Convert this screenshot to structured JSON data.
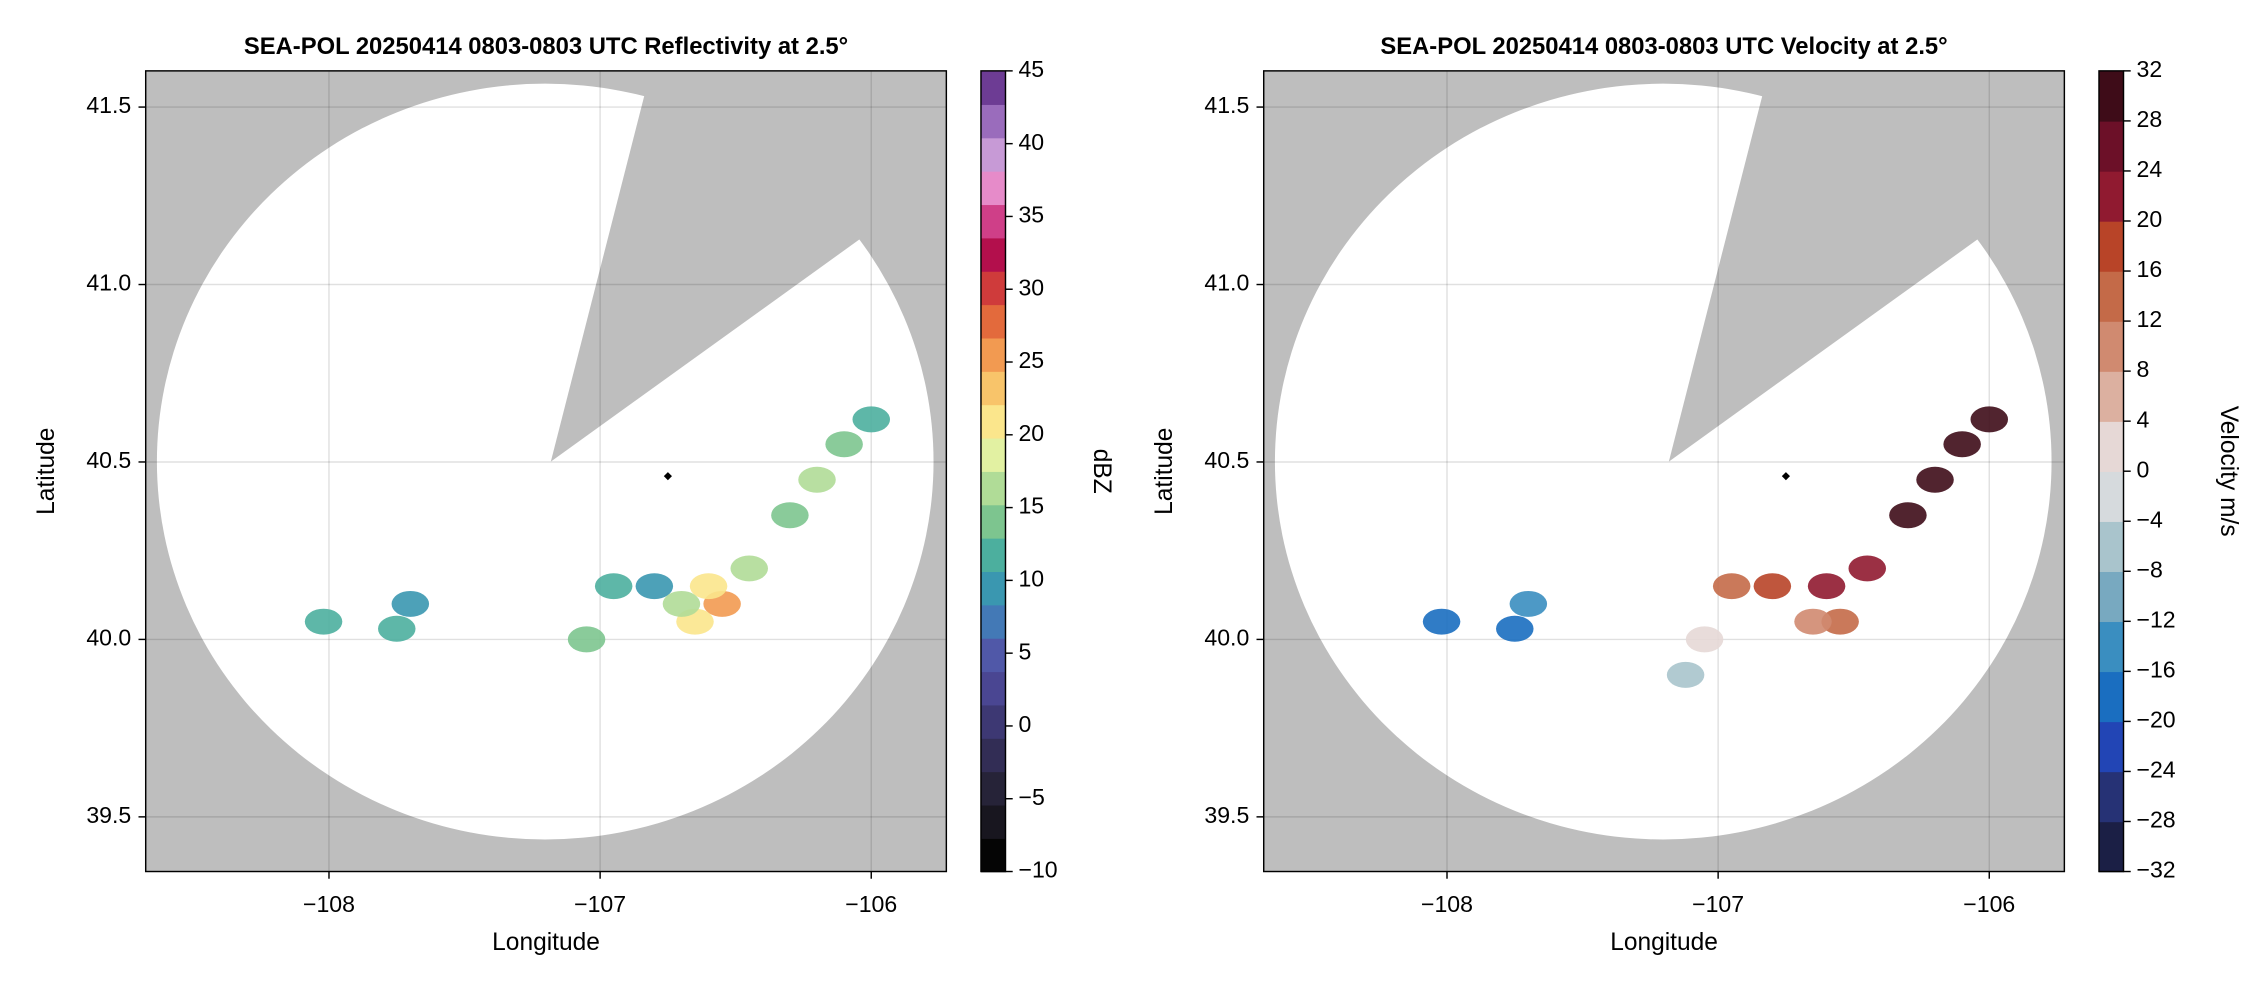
{
  "chart_data": [
    {
      "type": "radar",
      "title": "SEA-POL 20250414 0803-0803 UTC Reflectivity at 2.5°",
      "xlabel": "Longitude",
      "ylabel": "Latitude",
      "colorbar_label": "dBZ",
      "xlim": [
        -108.676,
        -105.723
      ],
      "ylim": [
        39.346,
        41.602
      ],
      "xticks": [
        {
          "value": -108,
          "label": "−108"
        },
        {
          "value": -107,
          "label": "−107"
        },
        {
          "value": -106,
          "label": "−106"
        }
      ],
      "yticks": [
        39.5,
        {
          "value": 40,
          "label": "40.0"
        },
        40.5,
        {
          "value": 41,
          "label": "41.0"
        },
        41.5
      ],
      "clim": [
        -10,
        45
      ],
      "cticks": [
        {
          "value": -10,
          "label": "−10"
        },
        {
          "value": -5,
          "label": "−5"
        },
        0,
        5,
        10,
        15,
        20,
        25,
        30,
        35,
        40,
        45
      ],
      "colors": [
        "#050505",
        "#18161f",
        "#262338",
        "#322d55",
        "#3d3873",
        "#4a4692",
        "#5058a8",
        "#4379b6",
        "#3a97b0",
        "#4caf9e",
        "#7dc58f",
        "#b0dc97",
        "#e2f1a2",
        "#fbe68c",
        "#f8c46a",
        "#f29a51",
        "#e36a3c",
        "#cf3b3b",
        "#b30f4c",
        "#cf3f88",
        "#e68bc9",
        "#c79ad6",
        "#9a6cbc",
        "#6d3c94"
      ],
      "grid": true,
      "x": [
        -106.55,
        -106.6,
        -106.45,
        -106.8,
        -106.95,
        -107.05,
        -106.3,
        -106.2,
        -106.1,
        -106.0,
        -107.75,
        -107.7,
        -108.02,
        -106.65,
        -106.7
      ],
      "y": [
        40.1,
        40.15,
        40.2,
        40.15,
        40.15,
        40.0,
        40.35,
        40.45,
        40.55,
        40.62,
        40.03,
        40.1,
        40.05,
        40.05,
        40.1
      ],
      "values": [
        25,
        20,
        16,
        10,
        12,
        14,
        15,
        16,
        14,
        12,
        12,
        10,
        12,
        22,
        17
      ],
      "marker_x": -106.75,
      "marker_y": 40.46
    },
    {
      "type": "radar",
      "title": "SEA-POL 20250414 0803-0803 UTC Velocity at 2.5°",
      "xlabel": "Longitude",
      "ylabel": "Latitude",
      "colorbar_label": "Velocity m/s",
      "xlim": [
        -108.676,
        -105.723
      ],
      "ylim": [
        39.346,
        41.602
      ],
      "xticks": [
        {
          "value": -108,
          "label": "−108"
        },
        {
          "value": -107,
          "label": "−107"
        },
        {
          "value": -106,
          "label": "−106"
        }
      ],
      "yticks": [
        39.5,
        {
          "value": 40,
          "label": "40.0"
        },
        40.5,
        {
          "value": 41,
          "label": "41.0"
        },
        41.5
      ],
      "clim": [
        -32,
        32
      ],
      "cticks": [
        {
          "value": -32,
          "label": "−32"
        },
        {
          "value": -28,
          "label": "−28"
        },
        {
          "value": -24,
          "label": "−24"
        },
        {
          "value": -20,
          "label": "−20"
        },
        {
          "value": -16,
          "label": "−16"
        },
        {
          "value": -12,
          "label": "−12"
        },
        {
          "value": -8,
          "label": "−8"
        },
        {
          "value": -4,
          "label": "−4"
        },
        0,
        4,
        8,
        12,
        16,
        20,
        24,
        28,
        32
      ],
      "colors": [
        "#1b1f45",
        "#263275",
        "#2245b5",
        "#1a6ec0",
        "#3a8ec0",
        "#78a9c0",
        "#a9c4cc",
        "#d6dadd",
        "#e6d8d6",
        "#dcb0a0",
        "#d08a70",
        "#c46a48",
        "#b84428",
        "#901a30",
        "#6c1028",
        "#3e0c18"
      ],
      "grid": true,
      "x": [
        -106.55,
        -106.6,
        -106.45,
        -106.8,
        -106.95,
        -107.05,
        -106.3,
        -106.2,
        -106.1,
        -106.0,
        -107.75,
        -107.7,
        -108.02,
        -106.65,
        -107.12
      ],
      "y": [
        40.05,
        40.15,
        40.2,
        40.15,
        40.15,
        40.0,
        40.35,
        40.45,
        40.55,
        40.62,
        40.03,
        40.1,
        40.05,
        40.05,
        39.9
      ],
      "values": [
        12,
        20,
        22,
        16,
        14,
        2,
        28,
        30,
        30,
        30,
        -18,
        -16,
        -20,
        10,
        -6
      ],
      "marker_x": -106.75,
      "marker_y": 40.46
    }
  ]
}
